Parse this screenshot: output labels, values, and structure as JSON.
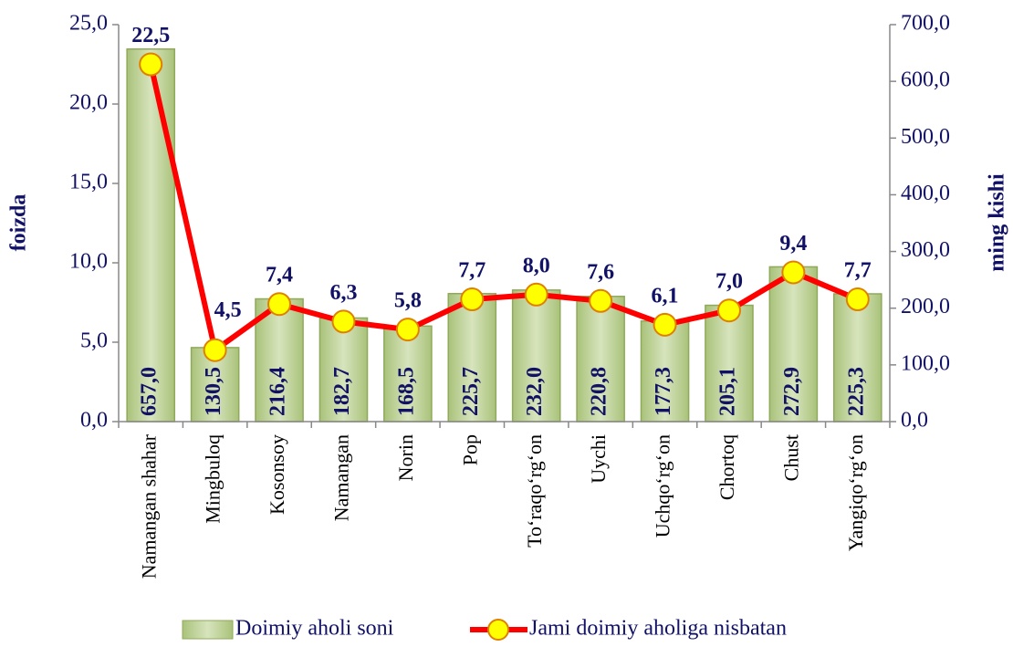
{
  "chart_data": {
    "type": "combo",
    "y_label": "foizda",
    "y2_label": "ming kishi",
    "categories": [
      "Namangan shahar",
      "Mingbuloq",
      "Kosonsoy",
      "Namangan",
      "Norin",
      "Pop",
      "To‘raqo‘rg‘on",
      "Uychi",
      "Uchqo‘rg‘on",
      "Chortoq",
      "Chust",
      "Yangiqo‘rg‘on"
    ],
    "series": [
      {
        "name": "Doimiy aholi soni",
        "type": "bar",
        "axis": "y2",
        "color": "#c3d69b",
        "values": [
          657.0,
          130.5,
          216.4,
          182.7,
          168.5,
          225.7,
          232.0,
          220.8,
          177.3,
          205.1,
          272.9,
          225.3
        ],
        "value_labels": [
          "657,0",
          "130,5",
          "216,4",
          "182,7",
          "168,5",
          "225,7",
          "232,0",
          "220,8",
          "177,3",
          "205,1",
          "272,9",
          "225,3"
        ]
      },
      {
        "name": "Jami doimiy aholiga nisbatan",
        "type": "line",
        "axis": "y",
        "color": "#ff0000",
        "marker_color": "#ffff00",
        "values": [
          22.5,
          4.5,
          7.4,
          6.3,
          5.8,
          7.7,
          8.0,
          7.6,
          6.1,
          7.0,
          9.4,
          7.7
        ],
        "value_labels": [
          "22,5",
          "4,5",
          "7,4",
          "6,3",
          "5,8",
          "7,7",
          "8,0",
          "7,6",
          "6,1",
          "7,0",
          "9,4",
          "7,7"
        ]
      }
    ],
    "ylim": [
      0,
      25
    ],
    "yticks": [
      {
        "value": 0,
        "label": "0,0"
      },
      {
        "value": 5,
        "label": "5,0"
      },
      {
        "value": 10,
        "label": "10,0"
      },
      {
        "value": 15,
        "label": "15,0"
      },
      {
        "value": 20,
        "label": "20,0"
      },
      {
        "value": 25,
        "label": "25,0"
      }
    ],
    "y2lim": [
      0,
      700
    ],
    "y2ticks": [
      {
        "value": 0,
        "label": "0,0"
      },
      {
        "value": 100,
        "label": "100,0"
      },
      {
        "value": 200,
        "label": "200,0"
      },
      {
        "value": 300,
        "label": "300,0"
      },
      {
        "value": 400,
        "label": "400,0"
      },
      {
        "value": 500,
        "label": "500,0"
      },
      {
        "value": 600,
        "label": "600,0"
      },
      {
        "value": 700,
        "label": "700,0"
      }
    ],
    "legend": "bottom"
  }
}
